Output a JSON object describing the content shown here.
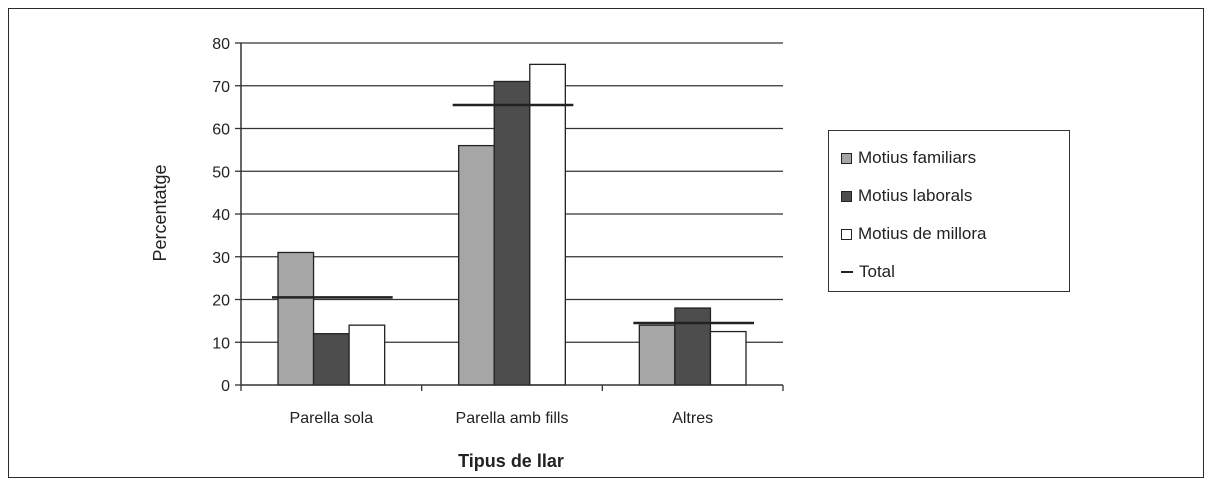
{
  "chart_data": {
    "type": "bar",
    "categories": [
      "Parella sola",
      "Parella amb fills",
      "Altres"
    ],
    "series": [
      {
        "name": "Motius familiars",
        "values": [
          31,
          56,
          14
        ],
        "color": "#a6a6a6"
      },
      {
        "name": "Motius laborals",
        "values": [
          12,
          71,
          18
        ],
        "color": "#4d4d4d"
      },
      {
        "name": "Motius de millora",
        "values": [
          14,
          75,
          12.5
        ],
        "color": "#ffffff"
      }
    ],
    "total": {
      "name": "Total",
      "values": [
        20.5,
        65.5,
        14.5
      ],
      "color": "#222222"
    },
    "ylabel": "Percentatge",
    "xlabel": "Tipus de llar",
    "ylim": [
      0,
      80
    ],
    "yticks": [
      "0",
      "10",
      "20",
      "30",
      "40",
      "50",
      "60",
      "70",
      "80"
    ],
    "grid": true,
    "legend_position": "right"
  }
}
